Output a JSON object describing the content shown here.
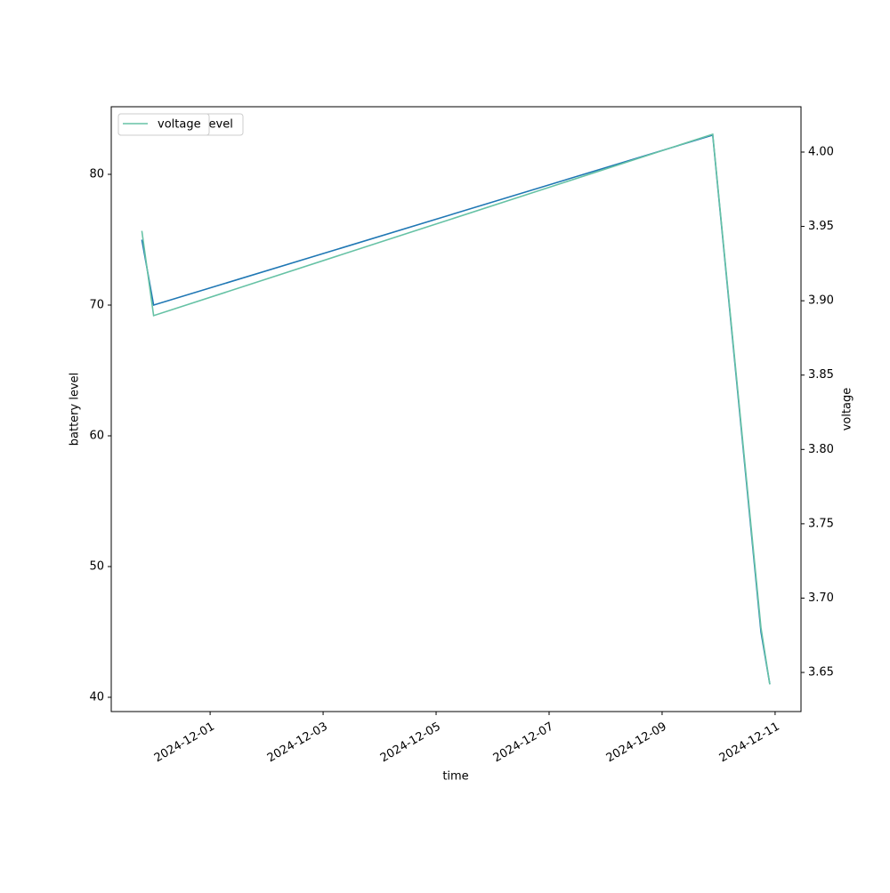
{
  "chart_data": {
    "type": "line",
    "xlabel": "time",
    "ylabel": "battery level",
    "y2label": "voltage",
    "x": [
      "2024-11-29T19:00",
      "2024-11-30T00:00",
      "2024-12-09T21:30",
      "2024-12-10T18:00",
      "2024-12-10T21:45"
    ],
    "series": [
      {
        "name": "battery_level",
        "color": "#1f77b4",
        "values": [
          75,
          70,
          83,
          45,
          41
        ]
      },
      {
        "name": "voltage",
        "color": "#66c2a5",
        "axis": "y2",
        "values": [
          3.947,
          3.89,
          4.012,
          3.68,
          3.642
        ]
      }
    ],
    "xlim": [
      "2024-11-29T06:00",
      "2024-12-11T11:00"
    ],
    "xticks": [
      "2024-12-01",
      "2024-12-03",
      "2024-12-05",
      "2024-12-07",
      "2024-12-09",
      "2024-12-11"
    ],
    "ylim": [
      38.91,
      85.17
    ],
    "yticks": [
      40,
      50,
      60,
      70,
      80
    ],
    "y2lim": [
      3.6237,
      4.0305
    ],
    "y2ticks": [
      3.65,
      3.7,
      3.75,
      3.8,
      3.85,
      3.9,
      3.95,
      4.0
    ],
    "legend": "upper left"
  }
}
